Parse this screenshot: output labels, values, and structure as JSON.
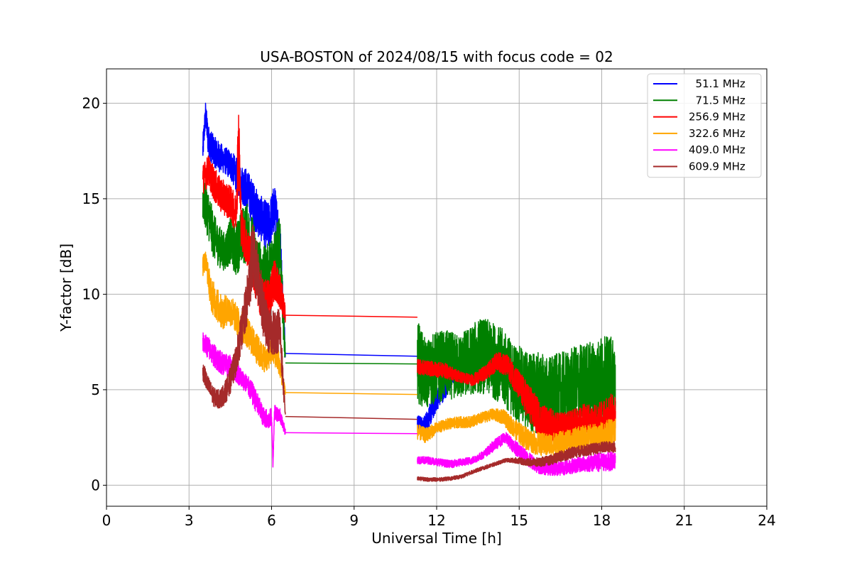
{
  "chart_data": {
    "type": "line",
    "title": "USA-BOSTON of 2024/08/15 with focus code = 02",
    "xlabel": "Universal Time [h]",
    "ylabel": "Y-factor [dB]",
    "xlim": [
      0,
      24
    ],
    "ylim": [
      -1.1,
      21.8
    ],
    "xticks": [
      0,
      3,
      6,
      9,
      12,
      15,
      18,
      21,
      24
    ],
    "yticks": [
      0,
      5,
      10,
      15,
      20
    ],
    "grid": true,
    "legend_position": "top-right",
    "series": [
      {
        "name": "  51.1 MHz",
        "color": "#0000ff",
        "segments": [
          {
            "x": [
              3.5,
              3.6,
              3.7,
              3.9,
              4.1,
              4.3,
              4.5,
              4.7,
              4.9,
              5.1,
              5.3,
              5.5,
              5.7,
              5.9,
              6.1,
              6.3,
              6.5
            ],
            "y": [
              17.5,
              19.5,
              18.0,
              17.5,
              17.2,
              17.0,
              16.8,
              16.3,
              15.8,
              15.5,
              14.8,
              14.2,
              13.8,
              13.5,
              14.5,
              13.0,
              7.0
            ],
            "amp": [
              0.8,
              0.6,
              0.9,
              0.8,
              0.8,
              0.7,
              0.8,
              0.9,
              1.0,
              1.1,
              1.2,
              1.2,
              1.2,
              1.3,
              1.3,
              1.2,
              0.5
            ]
          },
          {
            "x": [
              6.5,
              11.3
            ],
            "y": [
              6.9,
              6.75
            ],
            "amp": [
              0,
              0
            ]
          },
          {
            "x": [
              11.3,
              11.5,
              11.8,
              12.0,
              12.3,
              12.6,
              13.0,
              13.4
            ],
            "y": [
              3.4,
              3.0,
              3.8,
              4.5,
              5.0,
              5.7,
              5.9,
              5.8
            ],
            "amp": [
              0.4,
              0.5,
              0.6,
              0.6,
              0.5,
              0.4,
              0.3,
              0.3
            ]
          }
        ]
      },
      {
        "name": "  71.5 MHz",
        "color": "#008000",
        "segments": [
          {
            "x": [
              3.5,
              3.7,
              3.9,
              4.1,
              4.3,
              4.5,
              4.7,
              4.9,
              5.1,
              5.3,
              5.5,
              5.7,
              5.9,
              6.1,
              6.3,
              6.5
            ],
            "y": [
              15.0,
              14.2,
              13.0,
              12.5,
              12.2,
              12.8,
              12.3,
              13.0,
              13.2,
              12.5,
              11.5,
              11.0,
              11.3,
              12.0,
              12.5,
              6.5
            ],
            "amp": [
              1.2,
              1.3,
              1.2,
              1.1,
              1.0,
              1.2,
              1.4,
              1.5,
              1.6,
              1.6,
              1.5,
              1.5,
              1.4,
              1.5,
              1.6,
              0.6
            ]
          },
          {
            "x": [
              6.5,
              11.3
            ],
            "y": [
              6.4,
              6.35
            ],
            "amp": [
              0,
              0
            ]
          },
          {
            "x": [
              11.3,
              11.6,
              12.0,
              12.4,
              12.8,
              13.2,
              13.6,
              14.0,
              14.4,
              14.8,
              15.2,
              15.6,
              16.0,
              16.4,
              16.8,
              17.2,
              17.6,
              18.0,
              18.5
            ],
            "y": [
              6.5,
              5.8,
              6.2,
              6.3,
              6.2,
              6.5,
              6.8,
              6.6,
              6.2,
              5.5,
              5.0,
              4.8,
              4.6,
              4.8,
              4.9,
              5.2,
              5.3,
              5.5,
              5.6
            ],
            "amp": [
              2.2,
              1.8,
              1.9,
              1.8,
              1.7,
              1.8,
              2.0,
              2.0,
              2.0,
              2.0,
              2.1,
              2.2,
              2.2,
              2.1,
              2.2,
              2.2,
              2.3,
              2.3,
              2.2
            ]
          }
        ]
      },
      {
        "name": "256.9 MHz",
        "color": "#ff0000",
        "segments": [
          {
            "x": [
              3.5,
              3.7,
              3.9,
              4.1,
              4.3,
              4.5,
              4.7,
              4.8,
              4.9,
              5.1,
              5.3,
              5.5,
              5.7,
              5.9,
              6.1,
              6.3,
              6.5
            ],
            "y": [
              16.0,
              16.5,
              15.8,
              15.3,
              15.0,
              14.8,
              14.2,
              18.0,
              13.5,
              12.5,
              11.5,
              10.5,
              9.5,
              9.8,
              10.8,
              10.2,
              9.0
            ],
            "amp": [
              0.8,
              0.8,
              0.9,
              0.9,
              0.9,
              0.9,
              1.0,
              2.5,
              1.1,
              1.1,
              1.2,
              1.2,
              1.2,
              1.1,
              1.1,
              1.0,
              0.5
            ]
          },
          {
            "x": [
              6.5,
              11.3
            ],
            "y": [
              8.9,
              8.8
            ],
            "amp": [
              0,
              0
            ]
          },
          {
            "x": [
              11.3,
              11.8,
              12.3,
              12.8,
              13.3,
              13.8,
              14.2,
              14.6,
              15.0,
              15.4,
              15.8,
              16.2,
              16.6,
              17.0,
              17.4,
              17.8,
              18.2,
              18.5
            ],
            "y": [
              6.2,
              6.1,
              6.0,
              5.7,
              5.5,
              5.9,
              6.5,
              6.2,
              5.2,
              4.2,
              3.3,
              3.0,
              2.9,
              3.1,
              3.3,
              3.2,
              3.6,
              3.9
            ],
            "amp": [
              0.4,
              0.4,
              0.4,
              0.3,
              0.3,
              0.4,
              0.5,
              0.6,
              0.8,
              1.0,
              1.0,
              1.0,
              0.9,
              0.9,
              1.0,
              1.0,
              1.1,
              1.0
            ]
          }
        ]
      },
      {
        "name": "322.6 MHz",
        "color": "#ffa500",
        "segments": [
          {
            "x": [
              3.5,
              3.6,
              3.8,
              4.0,
              4.2,
              4.4,
              4.6,
              4.8,
              5.0,
              5.2,
              5.4,
              5.6,
              5.8,
              6.0,
              6.2,
              6.5
            ],
            "y": [
              11.5,
              11.8,
              10.0,
              9.5,
              9.0,
              9.2,
              9.0,
              8.5,
              8.2,
              7.8,
              7.3,
              6.8,
              6.6,
              7.0,
              6.8,
              4.9
            ],
            "amp": [
              0.6,
              0.5,
              0.9,
              0.9,
              0.9,
              0.8,
              0.8,
              0.8,
              0.8,
              0.8,
              0.8,
              0.8,
              0.7,
              0.7,
              0.7,
              0.3
            ]
          },
          {
            "x": [
              6.5,
              11.3
            ],
            "y": [
              4.85,
              4.75
            ],
            "amp": [
              0,
              0
            ]
          },
          {
            "x": [
              11.3,
              11.6,
              12.0,
              12.4,
              12.8,
              13.2,
              13.6,
              14.0,
              14.4,
              14.8,
              15.2,
              15.6,
              16.0,
              16.4,
              16.8,
              17.2,
              17.6,
              18.0,
              18.5
            ],
            "y": [
              2.8,
              2.6,
              3.0,
              3.2,
              3.3,
              3.3,
              3.5,
              3.7,
              3.6,
              3.0,
              2.5,
              2.2,
              2.1,
              2.2,
              2.3,
              2.4,
              2.5,
              2.6,
              2.8
            ],
            "amp": [
              0.4,
              0.4,
              0.3,
              0.3,
              0.3,
              0.3,
              0.3,
              0.3,
              0.4,
              0.5,
              0.6,
              0.6,
              0.6,
              0.6,
              0.6,
              0.7,
              0.7,
              0.7,
              0.8
            ]
          }
        ]
      },
      {
        "name": "409.0 MHz",
        "color": "#ff00ff",
        "segments": [
          {
            "x": [
              3.5,
              3.7,
              3.9,
              4.1,
              4.3,
              4.5,
              4.7,
              4.9,
              5.1,
              5.3,
              5.5,
              5.7,
              5.9,
              6.0,
              6.05,
              6.1,
              6.3,
              6.5
            ],
            "y": [
              7.5,
              7.2,
              6.8,
              6.5,
              6.3,
              6.2,
              6.0,
              5.6,
              5.3,
              4.8,
              4.2,
              3.6,
              3.4,
              3.6,
              1.0,
              3.8,
              3.7,
              2.8
            ],
            "amp": [
              0.5,
              0.6,
              0.6,
              0.6,
              0.6,
              0.6,
              0.6,
              0.5,
              0.5,
              0.6,
              0.6,
              0.5,
              0.5,
              0.5,
              0.2,
              0.4,
              0.4,
              0.2
            ]
          },
          {
            "x": [
              6.5,
              11.3
            ],
            "y": [
              2.75,
              2.7
            ],
            "amp": [
              0,
              0
            ]
          },
          {
            "x": [
              11.3,
              11.7,
              12.1,
              12.5,
              12.9,
              13.3,
              13.7,
              14.1,
              14.5,
              14.9,
              15.3,
              15.7,
              16.1,
              16.5,
              16.9,
              17.3,
              17.7,
              18.1,
              18.5
            ],
            "y": [
              1.3,
              1.3,
              1.2,
              1.1,
              1.2,
              1.3,
              1.6,
              2.1,
              2.5,
              1.9,
              1.4,
              1.0,
              0.9,
              0.9,
              1.0,
              1.1,
              1.2,
              1.2,
              1.3
            ],
            "amp": [
              0.2,
              0.2,
              0.2,
              0.2,
              0.2,
              0.2,
              0.2,
              0.3,
              0.3,
              0.4,
              0.4,
              0.4,
              0.4,
              0.4,
              0.4,
              0.4,
              0.5,
              0.5,
              0.5
            ]
          }
        ]
      },
      {
        "name": "609.9 MHz",
        "color": "#a52a2a",
        "segments": [
          {
            "x": [
              3.5,
              3.7,
              3.9,
              4.1,
              4.3,
              4.5,
              4.7,
              4.9,
              5.1,
              5.3,
              5.5,
              5.7,
              5.9,
              6.1,
              6.3,
              6.5
            ],
            "y": [
              6.0,
              5.2,
              4.6,
              4.5,
              4.8,
              5.5,
              6.5,
              8.0,
              9.5,
              12.0,
              11.0,
              9.0,
              8.0,
              8.0,
              8.2,
              3.6
            ],
            "amp": [
              0.5,
              0.5,
              0.5,
              0.5,
              0.6,
              0.7,
              0.8,
              1.0,
              1.3,
              1.8,
              1.6,
              1.3,
              1.2,
              1.2,
              1.2,
              0.3
            ]
          },
          {
            "x": [
              6.5,
              11.3
            ],
            "y": [
              3.6,
              3.45
            ],
            "amp": [
              0,
              0
            ]
          },
          {
            "x": [
              11.3,
              11.7,
              12.1,
              12.5,
              12.9,
              13.3,
              13.7,
              14.1,
              14.5,
              14.9,
              15.3,
              15.7,
              16.1,
              16.5,
              16.9,
              17.3,
              17.7,
              18.1,
              18.5
            ],
            "y": [
              0.35,
              0.3,
              0.3,
              0.35,
              0.45,
              0.7,
              0.9,
              1.1,
              1.3,
              1.3,
              1.2,
              1.2,
              1.3,
              1.5,
              1.7,
              1.8,
              1.9,
              2.0,
              2.0
            ],
            "amp": [
              0.1,
              0.1,
              0.1,
              0.1,
              0.1,
              0.1,
              0.1,
              0.1,
              0.1,
              0.15,
              0.2,
              0.25,
              0.25,
              0.3,
              0.3,
              0.3,
              0.3,
              0.3,
              0.3
            ]
          }
        ]
      }
    ]
  }
}
